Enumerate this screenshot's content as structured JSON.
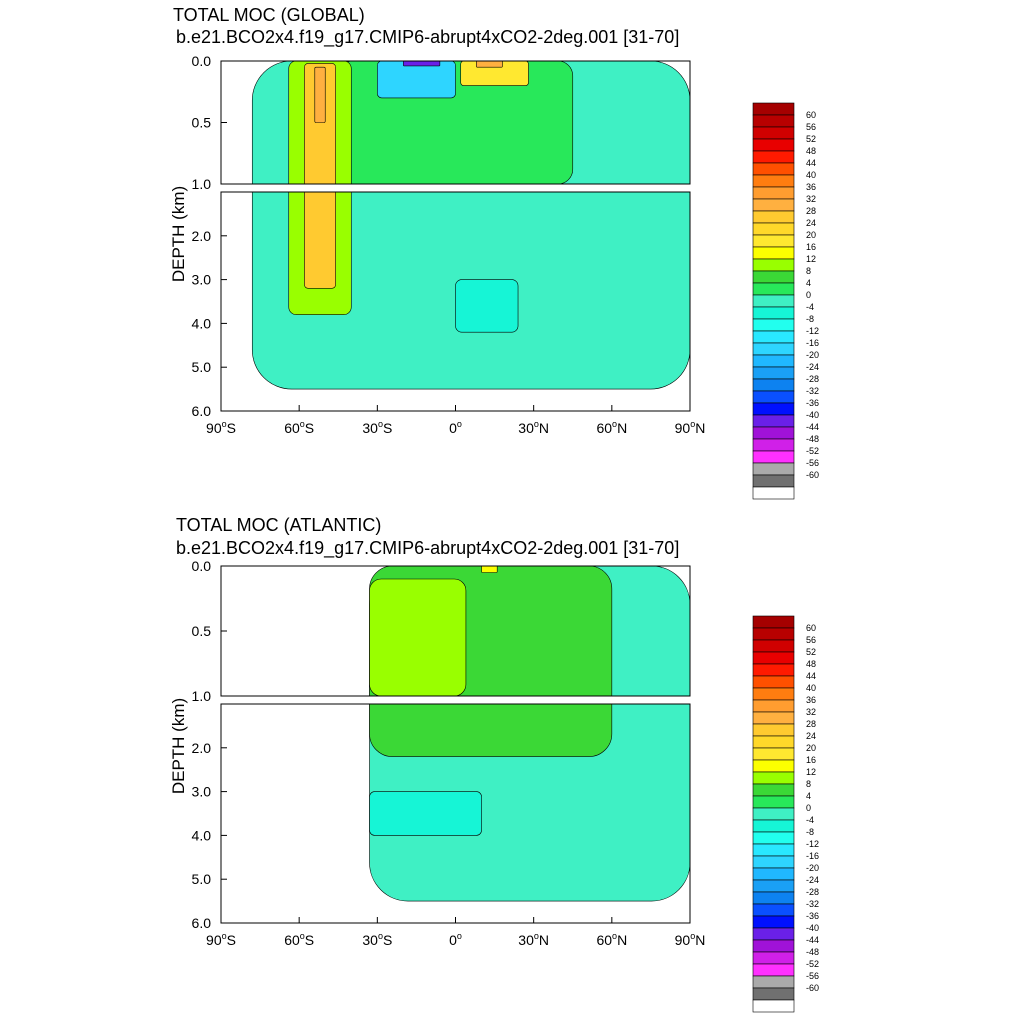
{
  "chart_data": [
    {
      "type": "heatmap",
      "panel_id": "global",
      "title": "TOTAL MOC (GLOBAL)",
      "subtitle": "b.e21.BCO2x4.f19_g17.CMIP6-abrupt4xCO2-2deg.001 [31-70]",
      "ylabel": "DEPTH (km)",
      "xlim": [
        -90,
        90
      ],
      "ylim": [
        6.0,
        0.0
      ],
      "x_ticks": [
        {
          "value": -90,
          "num": "90",
          "hemi": "S"
        },
        {
          "value": -60,
          "num": "60",
          "hemi": "S"
        },
        {
          "value": -30,
          "num": "30",
          "hemi": "S"
        },
        {
          "value": 0,
          "num": "0",
          "hemi": ""
        },
        {
          "value": 30,
          "num": "30",
          "hemi": "N"
        },
        {
          "value": 60,
          "num": "60",
          "hemi": "N"
        },
        {
          "value": 90,
          "num": "90",
          "hemi": "N"
        }
      ],
      "y_ticks_upper": [
        "0.0",
        "0.5",
        "1.0"
      ],
      "y_ticks_lower": [
        "2.0",
        "3.0",
        "4.0",
        "5.0",
        "6.0"
      ],
      "regions": [
        {
          "feature": "ocean-domain",
          "level": -2,
          "lat": [
            -78,
            90
          ],
          "depth": [
            0,
            5.5
          ]
        },
        {
          "feature": "upper-ocean-positive",
          "level": 2,
          "lat": [
            -45,
            45
          ],
          "depth": [
            0,
            1.0
          ]
        },
        {
          "feature": "southern-ocean-cell",
          "level": 8,
          "lat": [
            -64,
            -40
          ],
          "depth": [
            0,
            3.8
          ]
        },
        {
          "feature": "southern-ocean-cell-core",
          "level": 24,
          "lat": [
            -58,
            -46
          ],
          "depth": [
            0.02,
            3.2
          ]
        },
        {
          "feature": "southern-ocean-cell-max",
          "level": 30,
          "lat": [
            -54,
            -50
          ],
          "depth": [
            0.05,
            0.5
          ]
        },
        {
          "feature": "tropical-negative-cell",
          "level": -20,
          "lat": [
            -30,
            0
          ],
          "depth": [
            0,
            0.3
          ]
        },
        {
          "feature": "tropical-negative-cell-min",
          "level": -44,
          "lat": [
            -20,
            -6
          ],
          "depth": [
            0,
            0.04
          ]
        },
        {
          "feature": "tropical-positive-cell",
          "level": 16,
          "lat": [
            2,
            28
          ],
          "depth": [
            0,
            0.2
          ]
        },
        {
          "feature": "tropical-positive-cell-max",
          "level": 28,
          "lat": [
            8,
            18
          ],
          "depth": [
            0,
            0.05
          ]
        },
        {
          "feature": "deep-negative-cell",
          "level": -6,
          "lat": [
            0,
            24
          ],
          "depth": [
            3.0,
            4.2
          ]
        }
      ]
    },
    {
      "type": "heatmap",
      "panel_id": "atlantic",
      "title": "TOTAL MOC (ATLANTIC)",
      "subtitle": "b.e21.BCO2x4.f19_g17.CMIP6-abrupt4xCO2-2deg.001 [31-70]",
      "ylabel": "DEPTH (km)",
      "xlim": [
        -90,
        90
      ],
      "ylim": [
        6.0,
        0.0
      ],
      "x_ticks": [
        {
          "value": -90,
          "num": "90",
          "hemi": "S"
        },
        {
          "value": -60,
          "num": "60",
          "hemi": "S"
        },
        {
          "value": -30,
          "num": "30",
          "hemi": "S"
        },
        {
          "value": 0,
          "num": "0",
          "hemi": ""
        },
        {
          "value": 30,
          "num": "30",
          "hemi": "N"
        },
        {
          "value": 60,
          "num": "60",
          "hemi": "N"
        },
        {
          "value": 90,
          "num": "90",
          "hemi": "N"
        }
      ],
      "y_ticks_upper": [
        "0.0",
        "0.5",
        "1.0"
      ],
      "y_ticks_lower": [
        "2.0",
        "3.0",
        "4.0",
        "5.0",
        "6.0"
      ],
      "regions": [
        {
          "feature": "ocean-domain",
          "level": -2,
          "lat": [
            -33,
            90
          ],
          "depth": [
            0,
            5.5
          ]
        },
        {
          "feature": "upper-cell",
          "level": 4,
          "lat": [
            -33,
            60
          ],
          "depth": [
            0,
            2.2
          ]
        },
        {
          "feature": "upper-cell-core",
          "level": 8,
          "lat": [
            -33,
            4
          ],
          "depth": [
            0.1,
            1.0
          ]
        },
        {
          "feature": "upper-cell-max",
          "level": 12,
          "lat": [
            10,
            16
          ],
          "depth": [
            0,
            0.05
          ]
        },
        {
          "feature": "deep-negative-cell",
          "level": -6,
          "lat": [
            -33,
            10
          ],
          "depth": [
            3.0,
            4.0
          ]
        }
      ]
    }
  ],
  "colorbar": {
    "labels": [
      "60",
      "56",
      "52",
      "48",
      "44",
      "40",
      "36",
      "32",
      "28",
      "24",
      "20",
      "16",
      "12",
      "8",
      "4",
      "0",
      "-4",
      "-8",
      "-12",
      "-16",
      "-20",
      "-24",
      "-28",
      "-32",
      "-36",
      "-40",
      "-44",
      "-48",
      "-52",
      "-56",
      "-60"
    ],
    "colors": [
      "#a50000",
      "#b80000",
      "#d00000",
      "#e80000",
      "#ff1a00",
      "#ff5000",
      "#ff7d10",
      "#ff9d30",
      "#ffb040",
      "#ffca30",
      "#ffd82a",
      "#ffe830",
      "#fcff00",
      "#99ff00",
      "#3bd836",
      "#28e85a",
      "#3ff0c4",
      "#16f5d6",
      "#22ffee",
      "#29e8ff",
      "#2ed5ff",
      "#20b8ff",
      "#1aa0f5",
      "#0d82f0",
      "#0a50ff",
      "#0010ff",
      "#6a20e8",
      "#a012d8",
      "#d020e8",
      "#ff30ff",
      "#aaaaaa",
      "#707070",
      "#ffffff"
    ]
  }
}
